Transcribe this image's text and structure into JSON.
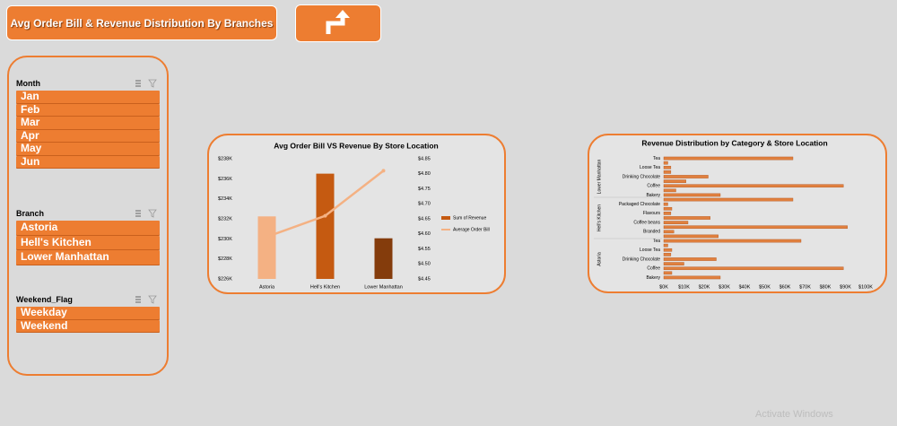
{
  "header": {
    "title": "Avg Order Bill & Revenue Distribution By Branches"
  },
  "slicers": [
    {
      "title": "Month",
      "items": [
        "Jan",
        "Feb",
        "Mar",
        "Apr",
        "May",
        "Jun"
      ]
    },
    {
      "title": "Branch",
      "items": [
        "Astoria",
        "Hell's Kitchen",
        "Lower Manhattan"
      ]
    },
    {
      "title": "Weekend_Flag",
      "items": [
        "Weekday",
        "Weekend"
      ]
    }
  ],
  "watermark": "Activate Windows",
  "chart_data": [
    {
      "type": "bar",
      "title": "Avg Order Bill VS Revenue By Store Location",
      "categories": [
        "Astoria",
        "Hell's Kitchen",
        "Lower Manhattan"
      ],
      "series": [
        {
          "name": "Sum of Revenue",
          "type": "bar",
          "color": "#c55a11",
          "colors": [
            "#f4b183",
            "#c55a11",
            "#843c0c"
          ],
          "values": [
            232244,
            236511,
            230057
          ]
        },
        {
          "name": "Average Order Bill",
          "type": "line",
          "axis": "y2",
          "color": "#f4b183",
          "values": [
            4.59,
            4.66,
            4.81
          ]
        }
      ],
      "ylim": [
        226000,
        238000
      ],
      "yticks": [
        {
          "value": 226000,
          "label": "$226K"
        },
        {
          "value": 228000,
          "label": "$228K"
        },
        {
          "value": 230000,
          "label": "$230K"
        },
        {
          "value": 232000,
          "label": "$232K"
        },
        {
          "value": 234000,
          "label": "$234K"
        },
        {
          "value": 236000,
          "label": "$236K"
        },
        {
          "value": 238000,
          "label": "$238K"
        }
      ],
      "y2lim": [
        4.45,
        4.85
      ],
      "y2ticks": [
        {
          "value": 4.45,
          "label": "$4.45"
        },
        {
          "value": 4.5,
          "label": "$4.50"
        },
        {
          "value": 4.55,
          "label": "$4.55"
        },
        {
          "value": 4.6,
          "label": "$4.60"
        },
        {
          "value": 4.65,
          "label": "$4.65"
        },
        {
          "value": 4.7,
          "label": "$4.70"
        },
        {
          "value": 4.75,
          "label": "$4.75"
        },
        {
          "value": 4.8,
          "label": "$4.80"
        },
        {
          "value": 4.85,
          "label": "$4.85"
        }
      ],
      "legend": "right",
      "grid": false
    },
    {
      "type": "barh",
      "title": "Revenue Distribution by Category & Store Location",
      "color": "#e0803f",
      "groups": [
        {
          "name": "Lower Manhattan",
          "categories": [
            "Tea",
            null,
            "Loose Tea",
            null,
            "Drinking Chocolate",
            null,
            "Coffee",
            null,
            "Bakery"
          ],
          "values": [
            64000,
            2000,
            3500,
            3500,
            22000,
            11000,
            89000,
            6000,
            28000
          ]
        },
        {
          "name": "Hell's Kitchen",
          "categories": [
            null,
            "Packaged Chocolate",
            null,
            "Flavours",
            null,
            "Coffee beans",
            null,
            "Branded",
            null
          ],
          "values": [
            64000,
            2000,
            4000,
            3500,
            23000,
            12000,
            91000,
            5000,
            27000
          ]
        },
        {
          "name": "Astoria",
          "categories": [
            "Tea",
            null,
            "Loose Tea",
            null,
            "Drinking Chocolate",
            null,
            "Coffee",
            null,
            "Bakery"
          ],
          "values": [
            68000,
            2000,
            4000,
            3500,
            26000,
            10000,
            89000,
            4000,
            28000
          ]
        }
      ],
      "xlim": [
        0,
        100000
      ],
      "xticks": [
        {
          "value": 0,
          "label": "$0K"
        },
        {
          "value": 10000,
          "label": "$10K"
        },
        {
          "value": 20000,
          "label": "$20K"
        },
        {
          "value": 30000,
          "label": "$30K"
        },
        {
          "value": 40000,
          "label": "$40K"
        },
        {
          "value": 50000,
          "label": "$50K"
        },
        {
          "value": 60000,
          "label": "$60K"
        },
        {
          "value": 70000,
          "label": "$70K"
        },
        {
          "value": 80000,
          "label": "$80K"
        },
        {
          "value": 90000,
          "label": "$90K"
        },
        {
          "value": 100000,
          "label": "$100K"
        }
      ],
      "grid": false
    }
  ]
}
